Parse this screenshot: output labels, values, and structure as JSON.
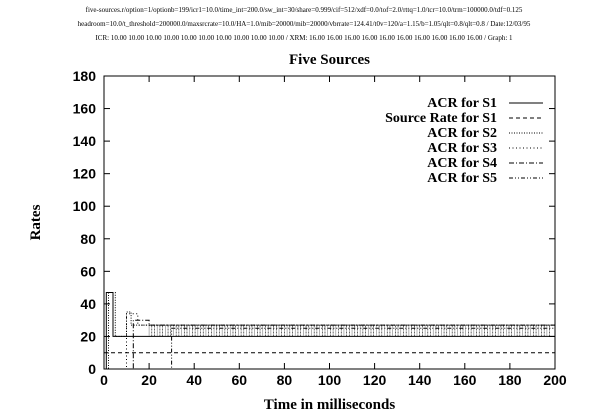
{
  "header": {
    "line1": "five-sources.r/option=1/optionb=199/icr1=10.0/time_int=200.0/sw_int=30/share=0.999/cif=512/xdf=0.0/tof=2.0/rttq=1.0/tcr=10.0/trm=100000.0/tdf=0.125",
    "line2": "headroom=10.0/t_threshold=200000.0/maxsrcrate=10.0/HA=1.0/mib=20000/mib=20000/vbrrate=124.41/t0v=120/a=1.15/b=1.05/qlt=0.8/qlt=0.8 / Date:12/03/95",
    "line3": "ICR: 10.00 10.00 10.00 10.00 10.00 10.00 10.00 10.00 10.00 10.00 / XRM: 16.00 16.00 16.00 16.00 16.00 16.00 16.00 16.00 16.00 16.00 / Graph: 1"
  },
  "chart_data": {
    "type": "line",
    "title": "Five Sources",
    "xlabel": "Time in milliseconds",
    "ylabel": "Rates",
    "xlim": [
      0,
      200
    ],
    "ylim": [
      0,
      180
    ],
    "xticks": [
      0,
      20,
      40,
      60,
      80,
      100,
      120,
      140,
      160,
      180,
      200
    ],
    "yticks": [
      0,
      20,
      40,
      60,
      80,
      100,
      120,
      140,
      160,
      180
    ],
    "grid": false,
    "legend_position": "top-right",
    "series": [
      {
        "name": "ACR for S1",
        "dash": "solid",
        "x": [
          0,
          1,
          1,
          4,
          4,
          200
        ],
        "y": [
          0,
          0,
          47,
          47,
          20,
          20
        ]
      },
      {
        "name": "Source Rate for S1",
        "dash": "dashed",
        "x": [
          0,
          200
        ],
        "y": [
          10,
          10
        ]
      },
      {
        "name": "ACR for S2",
        "dash": "dotted-fine",
        "x": [
          0,
          2,
          2,
          5,
          5,
          10,
          10,
          12,
          12,
          200
        ],
        "y": [
          0,
          0,
          47,
          47,
          20,
          20,
          35,
          35,
          27,
          27
        ]
      },
      {
        "name": "ACR for S3",
        "dash": "dotted",
        "x": [
          0,
          10,
          10,
          15,
          15,
          200
        ],
        "y": [
          0,
          0,
          34,
          34,
          27,
          27
        ]
      },
      {
        "name": "ACR for S4",
        "dash": "dash-dot",
        "x": [
          0,
          13,
          13,
          20,
          20,
          200
        ],
        "y": [
          0,
          0,
          30,
          30,
          27,
          27
        ]
      },
      {
        "name": "ACR for S5",
        "dash": "dash-dot-dot",
        "x": [
          0,
          30,
          30,
          200
        ],
        "y": [
          0,
          0,
          25,
          25
        ]
      }
    ]
  }
}
